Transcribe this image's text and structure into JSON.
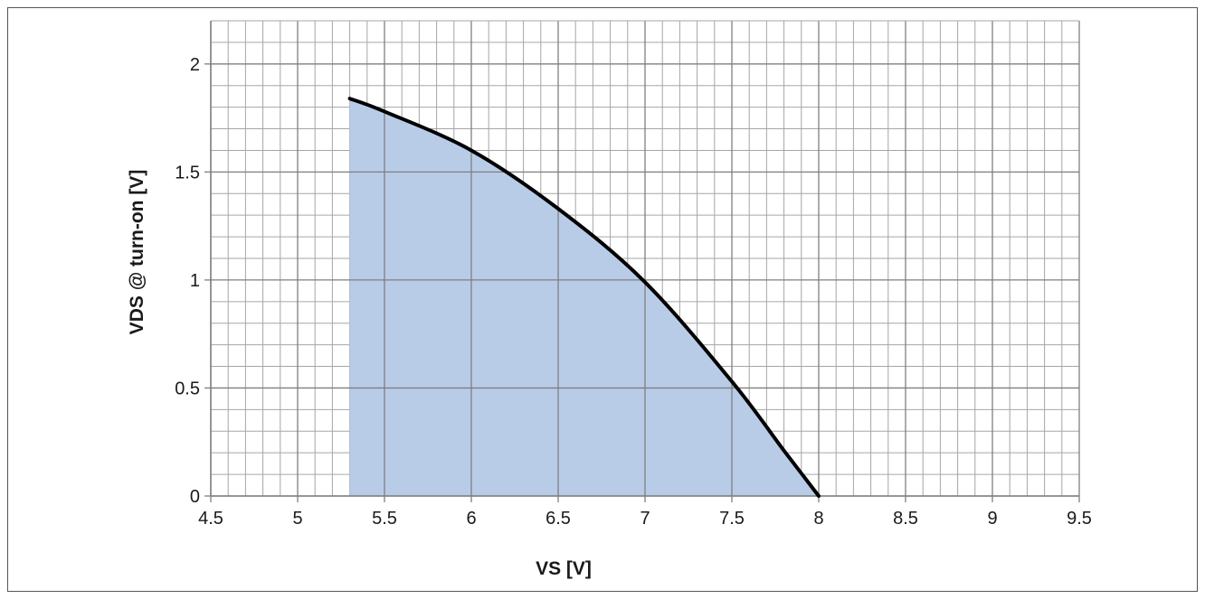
{
  "chart_data": {
    "type": "area",
    "title": "",
    "xlabel": "VS [V]",
    "ylabel": "VDS @ turn-on [V]",
    "xlim": [
      4.5,
      9.5
    ],
    "ylim": [
      0,
      2.2
    ],
    "x_ticks": [
      "4.5",
      "5",
      "5.5",
      "6",
      "6.5",
      "7",
      "7.5",
      "8",
      "8.5",
      "9",
      "9.5"
    ],
    "y_ticks": [
      "0",
      "0.5",
      "1",
      "1.5",
      "2"
    ],
    "grid": true,
    "minor_grid": {
      "x_step": 0.1,
      "y_step": 0.1
    },
    "series": [
      {
        "x": [
          5.3,
          5.5,
          6.0,
          6.5,
          7.0,
          7.5,
          7.8,
          8.0
        ],
        "y": [
          1.84,
          1.78,
          1.6,
          1.33,
          0.99,
          0.53,
          0.21,
          0.0
        ],
        "line_color": "#000000",
        "fill_color": "#b8cce8"
      }
    ],
    "legend": "none"
  }
}
